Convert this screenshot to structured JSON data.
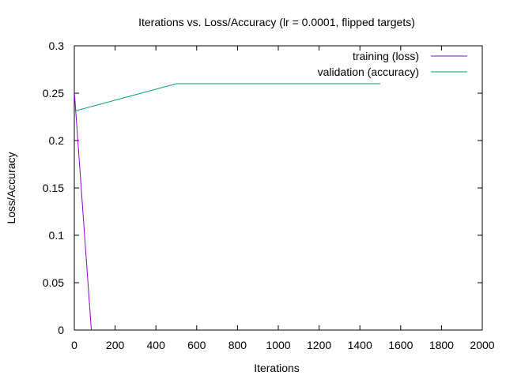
{
  "chart_data": {
    "type": "line",
    "title": "Iterations vs. Loss/Accuracy (lr = 0.0001, flipped targets)",
    "xlabel": "Iterations",
    "ylabel": "Loss/Accuracy",
    "xlim": [
      0,
      2000
    ],
    "ylim": [
      0,
      0.3
    ],
    "xticks": [
      0,
      200,
      400,
      600,
      800,
      1000,
      1200,
      1400,
      1600,
      1800,
      2000
    ],
    "yticks": [
      0,
      0.05,
      0.1,
      0.15,
      0.2,
      0.25,
      0.3
    ],
    "xtick_labels": [
      "0",
      "200",
      "400",
      "600",
      "800",
      "1000",
      "1200",
      "1400",
      "1600",
      "1800",
      "2000"
    ],
    "ytick_labels": [
      "0",
      "0.05",
      "0.1",
      "0.15",
      "0.2",
      "0.25",
      "0.3"
    ],
    "grid": false,
    "legend_position": "top-right",
    "series": [
      {
        "name": "training (loss)",
        "color": "#9400d3",
        "x": [
          0,
          100
        ],
        "y": [
          0.252,
          -0.05
        ]
      },
      {
        "name": "validation (accuracy)",
        "color": "#009e73",
        "x": [
          0,
          500,
          1500
        ],
        "y": [
          0.231,
          0.26,
          0.26
        ]
      }
    ]
  }
}
